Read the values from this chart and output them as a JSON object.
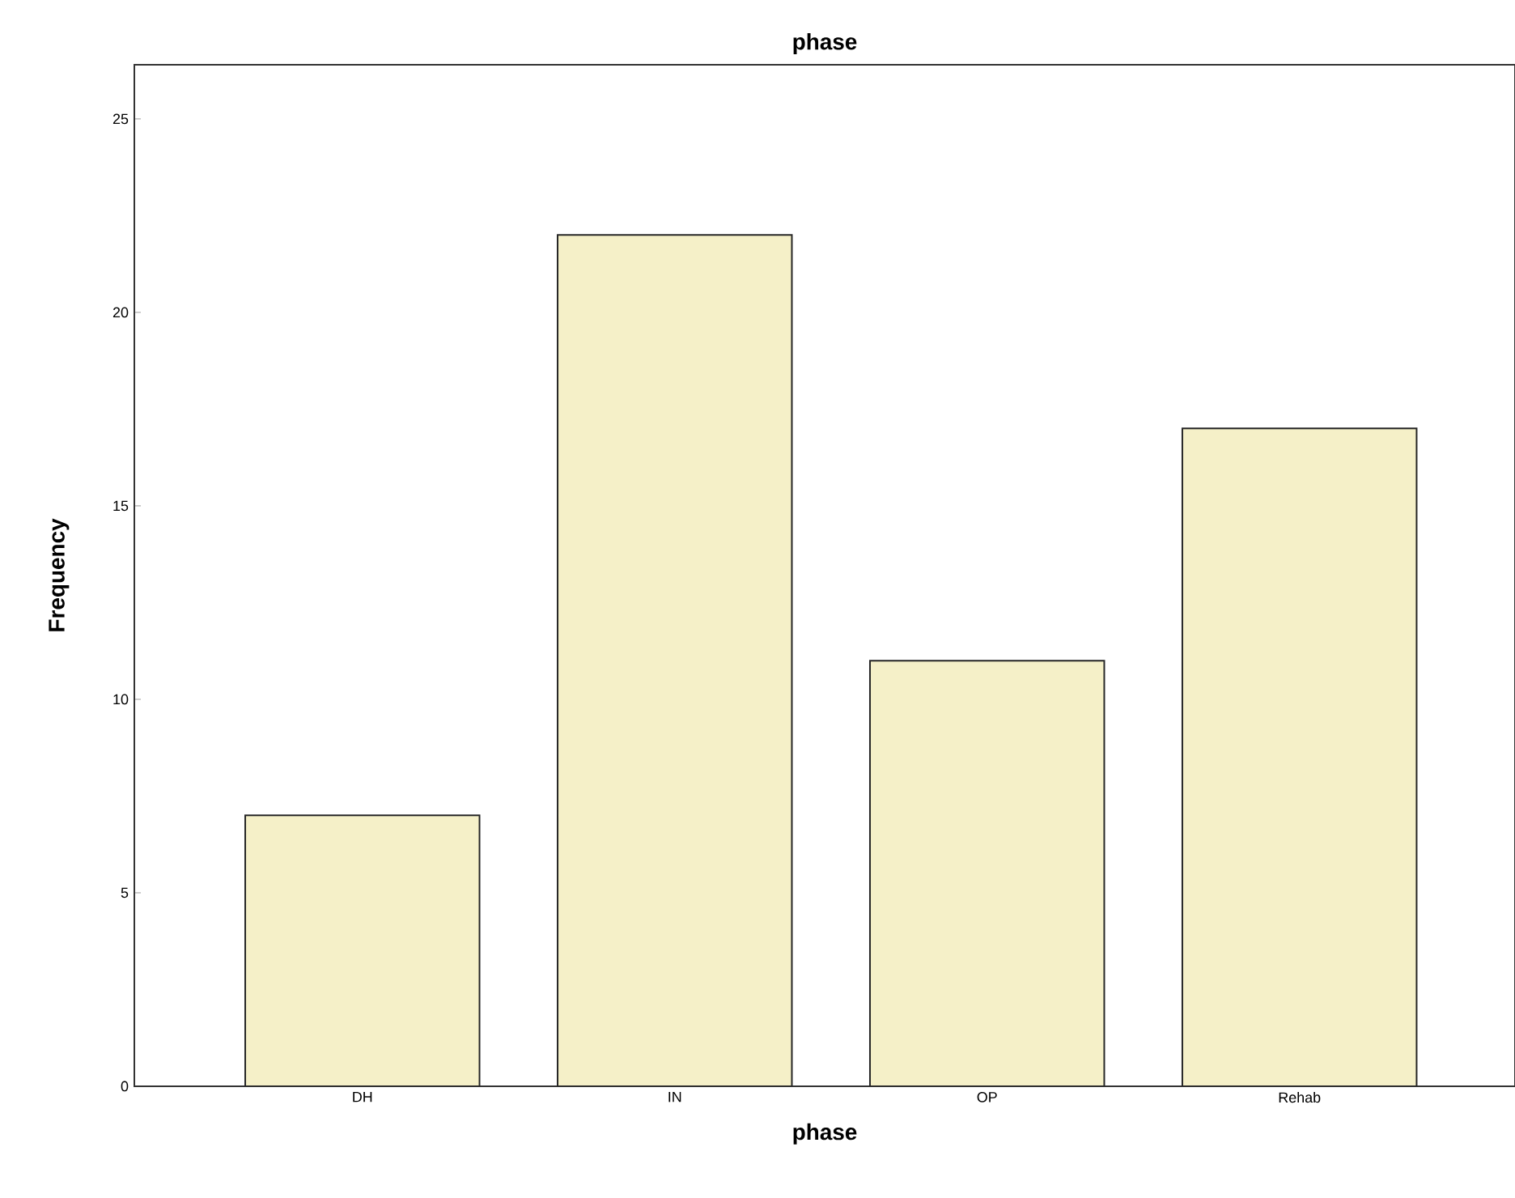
{
  "chart_data": {
    "type": "bar",
    "title": "phase",
    "xlabel": "phase",
    "ylabel": "Frequency",
    "categories": [
      "DH",
      "IN",
      "OP",
      "Rehab"
    ],
    "values": [
      7,
      22,
      11,
      17
    ],
    "color": "#f5f0c8",
    "ylim": [
      0,
      26.4
    ],
    "yticks": [
      0,
      5,
      10,
      15,
      20,
      25
    ]
  }
}
